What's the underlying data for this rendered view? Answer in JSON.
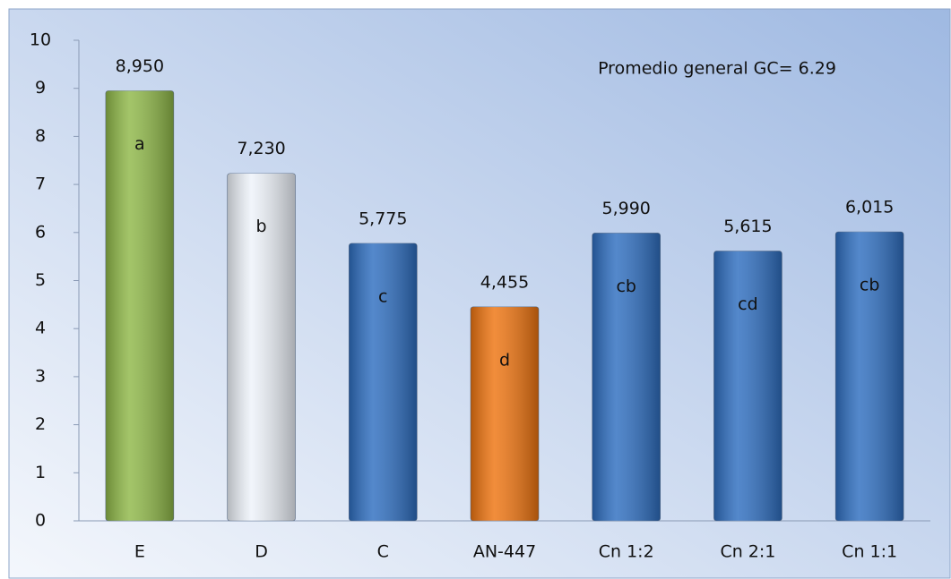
{
  "chart_data": {
    "type": "bar",
    "annotation": "Promedio general GC= 6.29",
    "categories": [
      "E",
      "D",
      "C",
      "AN-447",
      "Cn 1:2",
      "Cn 2:1",
      "Cn 1:1"
    ],
    "values": [
      8.95,
      7.23,
      5.775,
      4.455,
      5.99,
      5.615,
      6.015
    ],
    "value_labels": [
      "8,950",
      "7,230",
      "5,775",
      "4,455",
      "5,990",
      "5,615",
      "6,015"
    ],
    "group_letters": [
      "a",
      "b",
      "c",
      "d",
      "cb",
      "cd",
      "cb"
    ],
    "colors": [
      "#8fb848",
      "#eef3fa",
      "#2e6ec0",
      "#ee7410",
      "#2e6ec0",
      "#2e6ec0",
      "#2e6ec0"
    ],
    "ylim": [
      0,
      10
    ],
    "yticks": [
      0,
      1,
      2,
      3,
      4,
      5,
      6,
      7,
      8,
      9,
      10
    ],
    "grid": false
  }
}
